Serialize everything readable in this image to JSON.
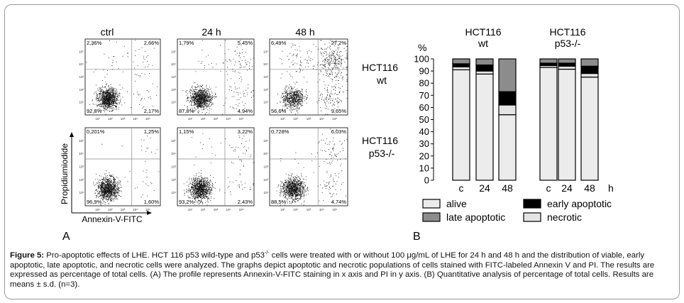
{
  "panel_a": {
    "label": "A",
    "column_titles": [
      "ctrl",
      "24 h",
      "48 h"
    ],
    "row_labels": [
      {
        "line1": "HCT116",
        "line2": "wt"
      },
      {
        "line1": "HCT116",
        "line2": "p53-/-"
      }
    ],
    "x_axis_label": "Annexin-V-FITC",
    "y_axis_label": "Propidiumiodide",
    "tick_labels": [
      "10⁰",
      "10¹",
      "10²",
      "10³",
      "10⁴",
      "10⁵"
    ],
    "plots": [
      {
        "row": 0,
        "col": 0,
        "q_ul": "2,36%",
        "q_ur": "2,66%",
        "q_ll": "92,8%",
        "q_lr": "2,17%"
      },
      {
        "row": 0,
        "col": 1,
        "q_ul": "1,79%",
        "q_ur": "5,45%",
        "q_ll": "87,8%",
        "q_lr": "4,94%"
      },
      {
        "row": 0,
        "col": 2,
        "q_ul": "6,49%",
        "q_ur": "27,2%",
        "q_ll": "56,6%",
        "q_lr": "9,65%"
      },
      {
        "row": 1,
        "col": 0,
        "q_ul": "0,201%",
        "q_ur": "1,25%",
        "q_ll": "96,9%",
        "q_lr": "1,60%"
      },
      {
        "row": 1,
        "col": 1,
        "q_ul": "1,15%",
        "q_ur": "3,22%",
        "q_ll": "93,2%",
        "q_lr": "2,43%"
      },
      {
        "row": 1,
        "col": 2,
        "q_ul": "0,728%",
        "q_ur": "6,03%",
        "q_ll": "88,5%",
        "q_lr": "4,74%"
      }
    ]
  },
  "chart_data": {
    "type": "bar",
    "stacked": true,
    "label": "B",
    "group_titles": [
      {
        "line1": "HCT116",
        "line2": "wt"
      },
      {
        "line1": "HCT116",
        "line2": "p53-/-"
      }
    ],
    "ylabel": "%",
    "xlabel": "h",
    "ylim": [
      0,
      100
    ],
    "yticks": [
      0,
      10,
      20,
      30,
      40,
      50,
      60,
      70,
      80,
      90,
      100
    ],
    "categories": [
      "c",
      "24",
      "48",
      "c",
      "24",
      "48"
    ],
    "series": [
      {
        "name": "alive",
        "values": [
          91,
          87.5,
          54,
          93,
          91.5,
          85
        ]
      },
      {
        "name": "necrotic",
        "values": [
          2.5,
          2.5,
          8,
          1.5,
          2.5,
          3
        ]
      },
      {
        "name": "early apoptotic",
        "values": [
          2.5,
          5,
          11,
          2,
          2.5,
          6
        ]
      },
      {
        "name": "late apoptotic",
        "values": [
          4,
          5,
          27,
          3.5,
          3.5,
          6
        ]
      }
    ],
    "legend": [
      {
        "name": "alive",
        "color": "#ececec"
      },
      {
        "name": "early apoptotic",
        "color": "#000000"
      },
      {
        "name": "late apoptotic",
        "color": "#8c8c8c"
      },
      {
        "name": "necrotic",
        "color": "#e4e4e4"
      }
    ],
    "series_colors": {
      "alive": "#ececec",
      "necrotic": "#e4e4e4",
      "early apoptotic": "#000000",
      "late apoptotic": "#8c8c8c"
    }
  },
  "caption": {
    "figure_label": "Figure 5:",
    "text_before_sup": " Pro-apoptotic effects of LHE. HCT 116 p53 wild-type and p53",
    "sup": "-/-",
    "text_after_sup": " cells were treated with or without 100 μg/mL of LHE for 24 h and 48 h and the distribution of viable, early apoptotic, late apoptotic, and necrotic cells were analyzed. The graphs depict apoptotic and necrotic populations of cells stained with FITC-labeled Annexin V and PI. The results are expressed as percentage of total cells. (A) The profile represents Annexin-V-FITC staining in x axis and PI in y axis. (B) Quantitative analysis of percentage of total cells. Results are means ± s.d. (n=3)."
  }
}
